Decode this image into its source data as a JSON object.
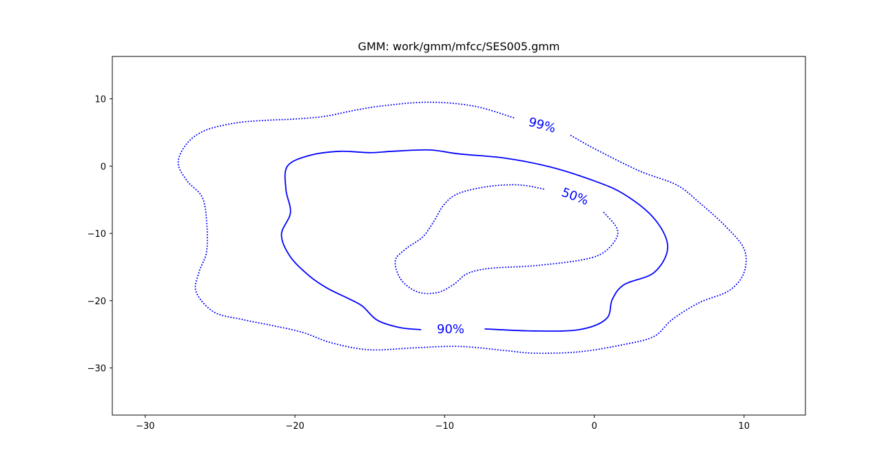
{
  "chart_data": {
    "type": "contour",
    "title": "GMM: work/gmm/mfcc/SES005.gmm",
    "xlabel": "",
    "ylabel": "",
    "xlim": [
      -32.2,
      14.1
    ],
    "ylim": [
      -37.0,
      16.3
    ],
    "xticks": [
      -30,
      -20,
      -10,
      0,
      10
    ],
    "yticks": [
      10,
      0,
      -10,
      -20,
      -30
    ],
    "grid": false,
    "color": "#0000ff",
    "contours": [
      {
        "label": "99%",
        "style": "dotted",
        "points": [
          [
            -5.4,
            7.2
          ],
          [
            -8.0,
            8.9
          ],
          [
            -11.0,
            9.5
          ],
          [
            -14.0,
            9.0
          ],
          [
            -16.0,
            8.3
          ],
          [
            -18.0,
            7.4
          ],
          [
            -20.0,
            7.0
          ],
          [
            -22.0,
            6.8
          ],
          [
            -24.0,
            6.4
          ],
          [
            -26.0,
            5.3
          ],
          [
            -27.2,
            3.4
          ],
          [
            -27.8,
            0.5
          ],
          [
            -27.2,
            -2.2
          ],
          [
            -26.2,
            -4.6
          ],
          [
            -25.9,
            -8.2
          ],
          [
            -25.9,
            -12.7
          ],
          [
            -26.4,
            -15.7
          ],
          [
            -26.6,
            -18.7
          ],
          [
            -25.4,
            -21.7
          ],
          [
            -23.5,
            -22.8
          ],
          [
            -21.5,
            -23.7
          ],
          [
            -19.5,
            -24.7
          ],
          [
            -17.5,
            -26.3
          ],
          [
            -15.0,
            -27.3
          ],
          [
            -12.0,
            -27.0
          ],
          [
            -9.0,
            -26.8
          ],
          [
            -6.0,
            -27.4
          ],
          [
            -4.0,
            -27.8
          ],
          [
            -1.0,
            -27.6
          ],
          [
            2.0,
            -26.5
          ],
          [
            4.0,
            -25.3
          ],
          [
            5.2,
            -22.8
          ],
          [
            7.0,
            -20.3
          ],
          [
            9.0,
            -18.5
          ],
          [
            10.0,
            -15.8
          ],
          [
            10.0,
            -12.3
          ],
          [
            8.7,
            -8.8
          ],
          [
            7.0,
            -5.4
          ],
          [
            5.5,
            -2.8
          ],
          [
            3.0,
            -0.7
          ],
          [
            0.0,
            2.6
          ],
          [
            -1.6,
            4.6
          ]
        ]
      },
      {
        "label": "90%",
        "style": "solid",
        "points": [
          [
            -7.3,
            -24.2
          ],
          [
            -4.0,
            -24.5
          ],
          [
            -1.0,
            -24.3
          ],
          [
            0.8,
            -22.7
          ],
          [
            1.2,
            -19.8
          ],
          [
            2.0,
            -17.6
          ],
          [
            4.0,
            -15.8
          ],
          [
            4.9,
            -12.0
          ],
          [
            4.0,
            -7.8
          ],
          [
            2.0,
            -4.2
          ],
          [
            0.0,
            -2.2
          ],
          [
            -3.0,
            -0.1
          ],
          [
            -6.0,
            1.2
          ],
          [
            -9.0,
            1.8
          ],
          [
            -11.0,
            2.4
          ],
          [
            -13.5,
            2.2
          ],
          [
            -15.0,
            2.0
          ],
          [
            -17.0,
            2.2
          ],
          [
            -19.0,
            1.6
          ],
          [
            -20.5,
            0.0
          ],
          [
            -20.6,
            -3.5
          ],
          [
            -20.3,
            -6.9
          ],
          [
            -20.9,
            -10.2
          ],
          [
            -20.3,
            -13.5
          ],
          [
            -19.0,
            -16.4
          ],
          [
            -17.8,
            -18.2
          ],
          [
            -16.5,
            -19.6
          ],
          [
            -15.5,
            -20.8
          ],
          [
            -14.5,
            -22.9
          ],
          [
            -13.0,
            -24.0
          ],
          [
            -11.6,
            -24.3
          ]
        ]
      },
      {
        "label": "50%",
        "style": "dotted",
        "points": [
          [
            -3.4,
            -3.4
          ],
          [
            -5.0,
            -2.8
          ],
          [
            -7.0,
            -3.0
          ],
          [
            -9.0,
            -4.0
          ],
          [
            -10.0,
            -5.6
          ],
          [
            -10.8,
            -8.5
          ],
          [
            -11.5,
            -10.6
          ],
          [
            -12.6,
            -12.3
          ],
          [
            -13.3,
            -14.1
          ],
          [
            -12.9,
            -16.9
          ],
          [
            -11.8,
            -18.7
          ],
          [
            -10.5,
            -18.8
          ],
          [
            -9.4,
            -17.6
          ],
          [
            -8.5,
            -16.0
          ],
          [
            -7.0,
            -15.2
          ],
          [
            -4.0,
            -14.8
          ],
          [
            -1.0,
            -14.0
          ],
          [
            0.5,
            -13.0
          ],
          [
            1.4,
            -11.0
          ],
          [
            1.5,
            -9.2
          ],
          [
            0.6,
            -6.8
          ]
        ]
      }
    ],
    "labels": [
      {
        "text": "99%",
        "x": -3.5,
        "y": 6.0,
        "rotation": 15
      },
      {
        "text": "50%",
        "x": -1.3,
        "y": -4.6,
        "rotation": 20
      },
      {
        "text": "90%",
        "x": -9.6,
        "y": -24.3,
        "rotation": 0
      }
    ]
  }
}
